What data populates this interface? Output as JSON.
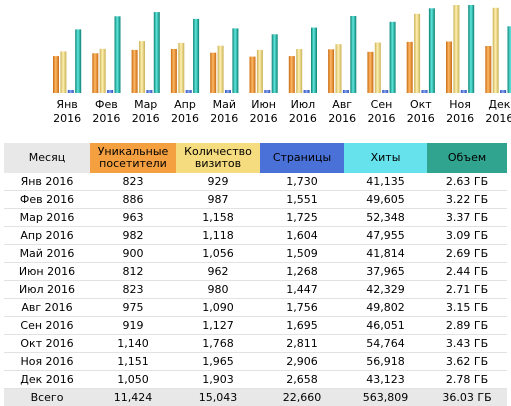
{
  "chart_data": {
    "type": "bar",
    "categories": [
      "Янв 2016",
      "Фев 2016",
      "Мар 2016",
      "Апр 2016",
      "Май 2016",
      "Июн 2016",
      "Июл 2016",
      "Авг 2016",
      "Сен 2016",
      "Окт 2016",
      "Ноя 2016",
      "Дек 2016"
    ],
    "series": [
      {
        "name": "Уникальные посетители",
        "color": "#f4a041",
        "values": [
          823,
          886,
          963,
          982,
          900,
          812,
          823,
          975,
          919,
          1140,
          1151,
          1050
        ]
      },
      {
        "name": "Количество визитов",
        "color": "#f5dc7e",
        "values": [
          929,
          987,
          1158,
          1118,
          1056,
          962,
          980,
          1090,
          1127,
          1768,
          1965,
          1903
        ]
      },
      {
        "name": "Страницы",
        "color": "#4a71d8",
        "values": [
          1730,
          1551,
          1725,
          1604,
          1509,
          1268,
          1447,
          1756,
          1695,
          2811,
          2906,
          2658
        ]
      },
      {
        "name": "Хиты",
        "color": "#1fb5a6",
        "values": [
          41135,
          49605,
          52348,
          47955,
          41814,
          37965,
          42329,
          49802,
          46051,
          54764,
          56918,
          43123
        ]
      }
    ]
  },
  "table": {
    "headers": {
      "month": "Месяц",
      "unique": [
        "Уникальные",
        "посетители"
      ],
      "visits": [
        "Количество",
        "визитов"
      ],
      "pages": "Страницы",
      "hits": "Хиты",
      "bandwidth": "Объем"
    },
    "rows": [
      {
        "month": "Янв 2016",
        "unique": "823",
        "visits": "929",
        "pages": "1,730",
        "hits": "41,135",
        "bandwidth": "2.63 ГБ"
      },
      {
        "month": "Фев 2016",
        "unique": "886",
        "visits": "987",
        "pages": "1,551",
        "hits": "49,605",
        "bandwidth": "3.22 ГБ"
      },
      {
        "month": "Мар 2016",
        "unique": "963",
        "visits": "1,158",
        "pages": "1,725",
        "hits": "52,348",
        "bandwidth": "3.37 ГБ"
      },
      {
        "month": "Апр 2016",
        "unique": "982",
        "visits": "1,118",
        "pages": "1,604",
        "hits": "47,955",
        "bandwidth": "3.09 ГБ"
      },
      {
        "month": "Май 2016",
        "unique": "900",
        "visits": "1,056",
        "pages": "1,509",
        "hits": "41,814",
        "bandwidth": "2.69 ГБ"
      },
      {
        "month": "Июн 2016",
        "unique": "812",
        "visits": "962",
        "pages": "1,268",
        "hits": "37,965",
        "bandwidth": "2.44 ГБ"
      },
      {
        "month": "Июл 2016",
        "unique": "823",
        "visits": "980",
        "pages": "1,447",
        "hits": "42,329",
        "bandwidth": "2.71 ГБ"
      },
      {
        "month": "Авг 2016",
        "unique": "975",
        "visits": "1,090",
        "pages": "1,756",
        "hits": "49,802",
        "bandwidth": "3.15 ГБ"
      },
      {
        "month": "Сен 2016",
        "unique": "919",
        "visits": "1,127",
        "pages": "1,695",
        "hits": "46,051",
        "bandwidth": "2.89 ГБ"
      },
      {
        "month": "Окт 2016",
        "unique": "1,140",
        "visits": "1,768",
        "pages": "2,811",
        "hits": "54,764",
        "bandwidth": "3.43 ГБ"
      },
      {
        "month": "Ноя 2016",
        "unique": "1,151",
        "visits": "1,965",
        "pages": "2,906",
        "hits": "56,918",
        "bandwidth": "3.62 ГБ"
      },
      {
        "month": "Дек 2016",
        "unique": "1,050",
        "visits": "1,903",
        "pages": "2,658",
        "hits": "43,123",
        "bandwidth": "2.78 ГБ"
      }
    ],
    "total": {
      "month": "Всего",
      "unique": "11,424",
      "visits": "15,043",
      "pages": "22,660",
      "hits": "563,809",
      "bandwidth": "36.03 ГБ"
    }
  }
}
